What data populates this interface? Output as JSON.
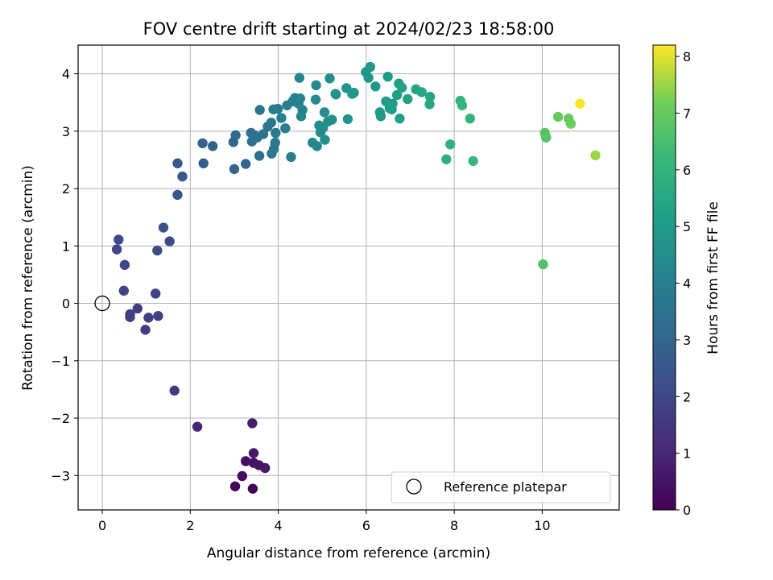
{
  "chart_data": {
    "type": "scatter",
    "title": "FOV centre drift starting at 2024/02/23 18:58:00",
    "xlabel": "Angular distance from reference (arcmin)",
    "ylabel": "Rotation from reference (arcmin)",
    "xlim": [
      -0.55,
      11.75
    ],
    "ylim": [
      -3.6,
      4.5
    ],
    "xticks": [
      0,
      2,
      4,
      6,
      8,
      10
    ],
    "yticks": [
      -3,
      -2,
      -1,
      0,
      1,
      2,
      3,
      4
    ],
    "grid": true,
    "legend": {
      "placement": "lower-right",
      "entries": [
        "Reference platepar"
      ]
    },
    "colorbar": {
      "label": "Hours from first FF file",
      "range": [
        0,
        8.2
      ],
      "ticks": [
        0,
        1,
        2,
        3,
        4,
        5,
        6,
        7,
        8
      ],
      "colormap": "viridis"
    },
    "reference_point": {
      "x": 0,
      "y": 0,
      "label": "Reference platepar"
    },
    "points": [
      {
        "x": 3.42,
        "y": -3.23,
        "c": 0.05
      },
      {
        "x": 3.02,
        "y": -3.19,
        "c": 0.15
      },
      {
        "x": 3.18,
        "y": -3.01,
        "c": 0.25
      },
      {
        "x": 3.26,
        "y": -2.75,
        "c": 0.35
      },
      {
        "x": 3.44,
        "y": -2.78,
        "c": 0.45
      },
      {
        "x": 3.56,
        "y": -2.82,
        "c": 0.5
      },
      {
        "x": 3.7,
        "y": -2.87,
        "c": 0.55
      },
      {
        "x": 3.44,
        "y": -2.61,
        "c": 0.65
      },
      {
        "x": 3.41,
        "y": -2.09,
        "c": 0.75
      },
      {
        "x": 2.16,
        "y": -2.15,
        "c": 0.95
      },
      {
        "x": 1.64,
        "y": -1.52,
        "c": 1.55
      },
      {
        "x": 0.98,
        "y": -0.46,
        "c": 1.65
      },
      {
        "x": 0.63,
        "y": -0.24,
        "c": 1.7
      },
      {
        "x": 0.63,
        "y": -0.19,
        "c": 1.72
      },
      {
        "x": 0.8,
        "y": -0.09,
        "c": 1.75
      },
      {
        "x": 1.05,
        "y": -0.25,
        "c": 1.78
      },
      {
        "x": 1.27,
        "y": -0.22,
        "c": 1.8
      },
      {
        "x": 0.49,
        "y": 0.22,
        "c": 1.85
      },
      {
        "x": 1.21,
        "y": 0.17,
        "c": 1.9
      },
      {
        "x": 0.51,
        "y": 0.67,
        "c": 1.95
      },
      {
        "x": 0.33,
        "y": 0.94,
        "c": 2.0
      },
      {
        "x": 0.37,
        "y": 1.11,
        "c": 2.05
      },
      {
        "x": 1.25,
        "y": 0.92,
        "c": 2.15
      },
      {
        "x": 1.53,
        "y": 1.08,
        "c": 2.2
      },
      {
        "x": 1.39,
        "y": 1.32,
        "c": 2.3
      },
      {
        "x": 1.71,
        "y": 1.89,
        "c": 2.45
      },
      {
        "x": 1.82,
        "y": 2.21,
        "c": 2.55
      },
      {
        "x": 1.71,
        "y": 2.44,
        "c": 2.6
      },
      {
        "x": 2.3,
        "y": 2.44,
        "c": 2.75
      },
      {
        "x": 2.28,
        "y": 2.79,
        "c": 2.85
      },
      {
        "x": 2.51,
        "y": 2.74,
        "c": 2.9
      },
      {
        "x": 3.0,
        "y": 2.34,
        "c": 3.0
      },
      {
        "x": 3.26,
        "y": 2.43,
        "c": 3.05
      },
      {
        "x": 2.98,
        "y": 2.81,
        "c": 3.1
      },
      {
        "x": 3.03,
        "y": 2.93,
        "c": 3.15
      },
      {
        "x": 3.57,
        "y": 2.57,
        "c": 3.25
      },
      {
        "x": 3.4,
        "y": 2.82,
        "c": 3.3
      },
      {
        "x": 3.46,
        "y": 2.93,
        "c": 3.35
      },
      {
        "x": 3.38,
        "y": 2.97,
        "c": 3.4
      },
      {
        "x": 3.52,
        "y": 2.89,
        "c": 3.45
      },
      {
        "x": 3.66,
        "y": 2.95,
        "c": 3.5
      },
      {
        "x": 3.58,
        "y": 3.37,
        "c": 3.55
      },
      {
        "x": 3.76,
        "y": 3.08,
        "c": 3.6
      },
      {
        "x": 3.84,
        "y": 3.15,
        "c": 3.65
      },
      {
        "x": 3.85,
        "y": 2.61,
        "c": 3.7
      },
      {
        "x": 3.9,
        "y": 2.69,
        "c": 3.72
      },
      {
        "x": 3.93,
        "y": 2.8,
        "c": 3.75
      },
      {
        "x": 3.94,
        "y": 2.97,
        "c": 3.78
      },
      {
        "x": 3.89,
        "y": 3.38,
        "c": 3.8
      },
      {
        "x": 3.99,
        "y": 3.39,
        "c": 3.85
      },
      {
        "x": 4.07,
        "y": 3.23,
        "c": 3.9
      },
      {
        "x": 4.16,
        "y": 3.05,
        "c": 3.95
      },
      {
        "x": 4.29,
        "y": 2.55,
        "c": 4.0
      },
      {
        "x": 4.2,
        "y": 3.45,
        "c": 4.05
      },
      {
        "x": 4.33,
        "y": 3.52,
        "c": 4.08
      },
      {
        "x": 4.38,
        "y": 3.58,
        "c": 4.1
      },
      {
        "x": 4.46,
        "y": 3.48,
        "c": 4.12
      },
      {
        "x": 4.5,
        "y": 3.57,
        "c": 4.15
      },
      {
        "x": 4.55,
        "y": 3.37,
        "c": 4.18
      },
      {
        "x": 4.52,
        "y": 3.26,
        "c": 4.2
      },
      {
        "x": 4.48,
        "y": 3.93,
        "c": 4.25
      },
      {
        "x": 4.78,
        "y": 2.8,
        "c": 4.3
      },
      {
        "x": 4.88,
        "y": 2.74,
        "c": 4.35
      },
      {
        "x": 4.85,
        "y": 3.55,
        "c": 4.38
      },
      {
        "x": 4.86,
        "y": 3.8,
        "c": 4.4
      },
      {
        "x": 4.93,
        "y": 3.1,
        "c": 4.45
      },
      {
        "x": 4.96,
        "y": 2.98,
        "c": 4.48
      },
      {
        "x": 5.06,
        "y": 2.85,
        "c": 4.5
      },
      {
        "x": 5.02,
        "y": 3.06,
        "c": 4.52
      },
      {
        "x": 5.05,
        "y": 3.33,
        "c": 4.55
      },
      {
        "x": 5.13,
        "y": 3.17,
        "c": 4.58
      },
      {
        "x": 5.22,
        "y": 3.2,
        "c": 4.6
      },
      {
        "x": 5.17,
        "y": 3.92,
        "c": 4.65
      },
      {
        "x": 5.3,
        "y": 3.65,
        "c": 4.7
      },
      {
        "x": 5.31,
        "y": 3.64,
        "c": 4.72
      },
      {
        "x": 5.55,
        "y": 3.75,
        "c": 4.75
      },
      {
        "x": 5.58,
        "y": 3.21,
        "c": 4.78
      },
      {
        "x": 5.68,
        "y": 3.65,
        "c": 4.8
      },
      {
        "x": 5.72,
        "y": 3.67,
        "c": 4.82
      },
      {
        "x": 5.99,
        "y": 4.03,
        "c": 4.85
      },
      {
        "x": 6.05,
        "y": 3.93,
        "c": 4.88
      },
      {
        "x": 6.09,
        "y": 4.12,
        "c": 4.9
      },
      {
        "x": 6.21,
        "y": 3.78,
        "c": 4.95
      },
      {
        "x": 6.31,
        "y": 3.33,
        "c": 5.0
      },
      {
        "x": 6.33,
        "y": 3.26,
        "c": 5.02
      },
      {
        "x": 6.45,
        "y": 3.52,
        "c": 5.05
      },
      {
        "x": 6.49,
        "y": 3.95,
        "c": 5.08
      },
      {
        "x": 6.53,
        "y": 3.4,
        "c": 5.1
      },
      {
        "x": 6.58,
        "y": 3.38,
        "c": 5.12
      },
      {
        "x": 6.6,
        "y": 3.48,
        "c": 5.14
      },
      {
        "x": 6.7,
        "y": 3.63,
        "c": 5.18
      },
      {
        "x": 6.74,
        "y": 3.83,
        "c": 5.2
      },
      {
        "x": 6.76,
        "y": 3.22,
        "c": 5.22
      },
      {
        "x": 6.81,
        "y": 3.76,
        "c": 5.25
      },
      {
        "x": 6.94,
        "y": 3.56,
        "c": 5.3
      },
      {
        "x": 7.13,
        "y": 3.73,
        "c": 5.35
      },
      {
        "x": 7.26,
        "y": 3.68,
        "c": 5.4
      },
      {
        "x": 7.45,
        "y": 3.6,
        "c": 5.45
      },
      {
        "x": 7.44,
        "y": 3.47,
        "c": 5.5
      },
      {
        "x": 7.82,
        "y": 2.51,
        "c": 5.9
      },
      {
        "x": 7.91,
        "y": 2.77,
        "c": 5.95
      },
      {
        "x": 8.14,
        "y": 3.53,
        "c": 6.0
      },
      {
        "x": 8.18,
        "y": 3.45,
        "c": 6.05
      },
      {
        "x": 8.36,
        "y": 3.22,
        "c": 6.1
      },
      {
        "x": 8.43,
        "y": 2.48,
        "c": 6.15
      },
      {
        "x": 10.02,
        "y": 0.68,
        "c": 6.65
      },
      {
        "x": 10.06,
        "y": 2.97,
        "c": 6.7
      },
      {
        "x": 10.09,
        "y": 2.89,
        "c": 6.72
      },
      {
        "x": 10.36,
        "y": 3.25,
        "c": 7.0
      },
      {
        "x": 10.6,
        "y": 3.22,
        "c": 7.05
      },
      {
        "x": 10.65,
        "y": 3.13,
        "c": 7.1
      },
      {
        "x": 11.21,
        "y": 2.58,
        "c": 7.5
      },
      {
        "x": 10.86,
        "y": 3.48,
        "c": 8.15
      }
    ]
  }
}
